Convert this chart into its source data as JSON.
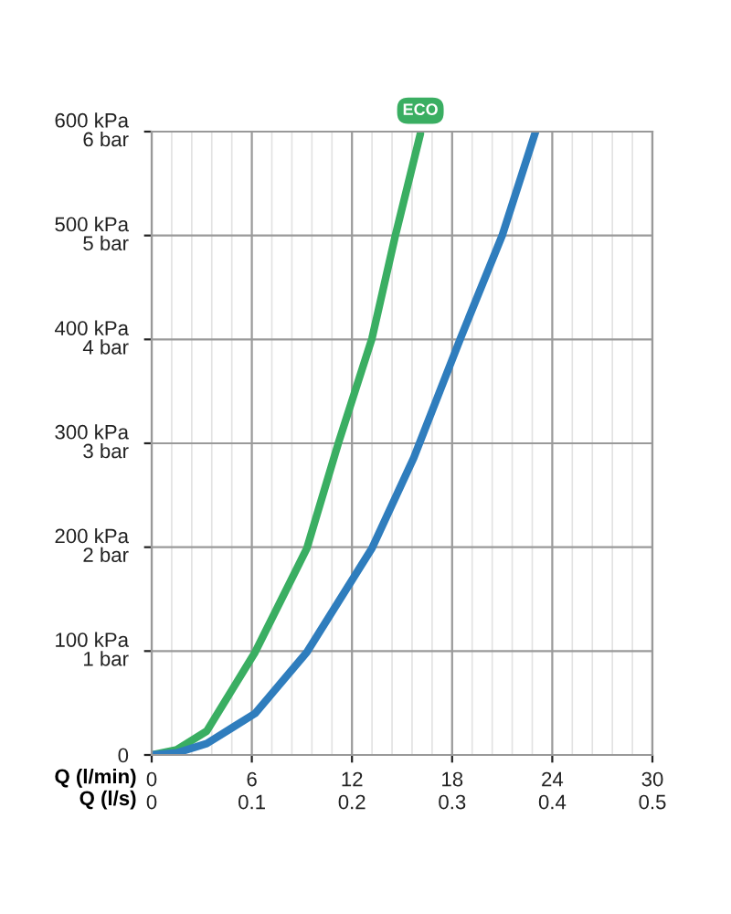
{
  "chart_data": {
    "type": "line",
    "xlabel": "Q (l/min)",
    "x2label": "Q (l/s)",
    "xlim": [
      0,
      30
    ],
    "xticks": [
      0,
      6,
      12,
      18,
      24,
      30
    ],
    "x2lim": [
      0,
      0.5
    ],
    "x2ticks": [
      0,
      0.1,
      0.2,
      0.3,
      0.4,
      0.5
    ],
    "ylim": [
      0,
      600
    ],
    "yticks": [
      0,
      {
        "value": 100,
        "label": "100 kPa"
      },
      {
        "value": 200,
        "label": "200 kPa"
      },
      {
        "value": 300,
        "label": "300 kPa"
      },
      {
        "value": 400,
        "label": "400 kPa"
      },
      {
        "value": 500,
        "label": "500 kPa"
      },
      {
        "value": 600,
        "label": "600 kPa"
      }
    ],
    "y2lim": [
      0,
      6
    ],
    "y2ticks": [
      {
        "value": 0,
        "label": null
      },
      {
        "value": 1,
        "label": "1 bar"
      },
      {
        "value": 2,
        "label": "2 bar"
      },
      {
        "value": 3,
        "label": "3 bar"
      },
      {
        "value": 4,
        "label": "4 bar"
      },
      {
        "value": 5,
        "label": "5 bar"
      },
      {
        "value": 6,
        "label": "6 bar"
      }
    ],
    "grid": true,
    "marker": "none",
    "line_style": "solid",
    "series": [
      {
        "name": "ECO",
        "color": "#3aae62",
        "x": [
          0,
          1.5,
          3.3,
          6.2,
          9.3,
          11.2,
          13.2,
          14.6,
          16.1
        ],
        "values": [
          0,
          5,
          23,
          99,
          199,
          301,
          401,
          500,
          598
        ]
      },
      {
        "color": "#2f7dbd",
        "x": [
          0,
          1.5,
          3.3,
          6.2,
          9.3,
          13.2,
          15.7,
          18.5,
          21.0,
          23.0
        ],
        "values": [
          0,
          2,
          11,
          40,
          99,
          199,
          286,
          401,
          500,
          600
        ]
      }
    ]
  }
}
